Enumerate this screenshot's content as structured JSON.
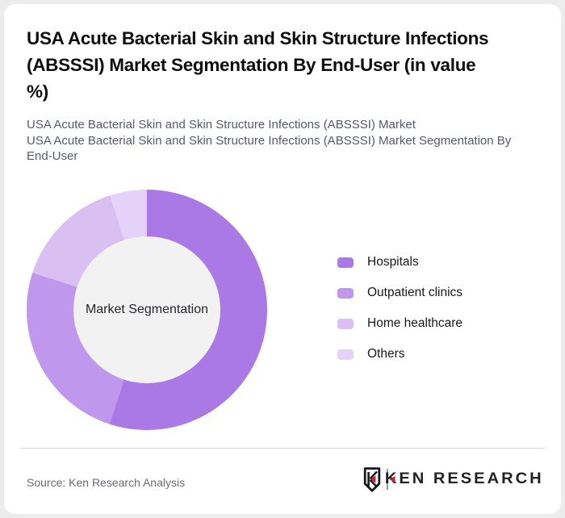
{
  "header": {
    "title": "USA Acute Bacterial Skin and Skin Structure Infections (ABSSSI) Market Segmentation By End-User (in value %)",
    "title_lines": [
      "USA Acute Bacterial Skin and Skin Structure Infections",
      "(ABSSSI) Market Segmentation By End-User (in value",
      "%)"
    ],
    "subtitle1": "USA Acute Bacterial Skin and Skin Structure Infections (ABSSSI) Market",
    "subtitle2": "USA Acute Bacterial Skin and Skin Structure Infections (ABSSSI) Market Segmentation By End-User",
    "subtitle2_lines": [
      "USA Acute Bacterial Skin and Skin Structure Infections (ABSSSI) Market Segmentation By",
      "End-User"
    ]
  },
  "chart_data": {
    "type": "pie",
    "variant": "donut",
    "title": "USA Acute Bacterial Skin and Skin Structure Infections (ABSSSI) Market Segmentation By End-User (in value %)",
    "center_label": "Market Segmentation",
    "unit": "value %",
    "categories": [
      "Hospitals",
      "Outpatient clinics",
      "Home healthcare",
      "Others"
    ],
    "values": [
      55,
      25,
      15,
      5
    ],
    "colors": [
      "#aa79e5",
      "#bf97ec",
      "#dabff3",
      "#e4d2f8"
    ],
    "start_angle_deg": 0,
    "direction": "clockwise",
    "legend_position": "right",
    "data_labels_shown": false,
    "hole_color": "#f2f2f2",
    "hole_ratio": 0.61
  },
  "legend": {
    "items": [
      {
        "label": "Hospitals",
        "color": "#aa79e5"
      },
      {
        "label": "Outpatient clinics",
        "color": "#bf97ec"
      },
      {
        "label": "Home healthcare",
        "color": "#dabff3"
      },
      {
        "label": "Others",
        "color": "#e4d2f8"
      }
    ]
  },
  "footer": {
    "source_text": "Source: Ken Research Analysis",
    "brand_name": "KEN RESEARCH",
    "brand_accent_color": "#c1272d"
  },
  "colors": {
    "page_bg": "#ececec",
    "card_bg": "#ffffff",
    "title_text": "#0d0e10",
    "subtitle_text": "#535a6e",
    "legend_text": "#17181c",
    "source_text": "#696974",
    "divider": "#d8d8d8"
  }
}
